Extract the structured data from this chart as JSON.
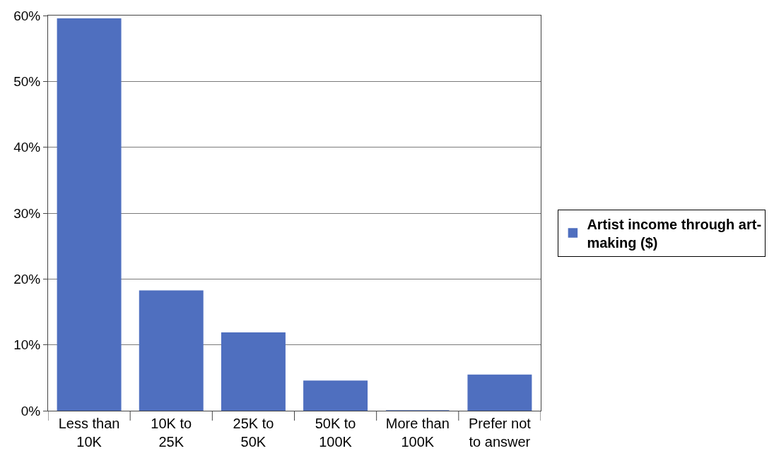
{
  "chart_data": {
    "type": "bar",
    "categories": [
      "Less than 10K",
      "10K to 25K",
      "25K to 50K",
      "50K to 100K",
      "More than 100K",
      "Prefer not to answer"
    ],
    "series": [
      {
        "name": "Artist income through art-making ($)",
        "color": "#4f6fbf",
        "values": [
          59.5,
          18.2,
          11.8,
          4.5,
          0,
          5.4
        ]
      }
    ],
    "ylim": [
      0,
      60
    ],
    "yticks": [
      {
        "value": 0,
        "label": "0%"
      },
      {
        "value": 10,
        "label": "10%"
      },
      {
        "value": 20,
        "label": "20%"
      },
      {
        "value": 30,
        "label": "30%"
      },
      {
        "value": 40,
        "label": "40%"
      },
      {
        "value": 50,
        "label": "50%"
      },
      {
        "value": 60,
        "label": "60%"
      }
    ],
    "grid": "y",
    "legend": "right"
  }
}
